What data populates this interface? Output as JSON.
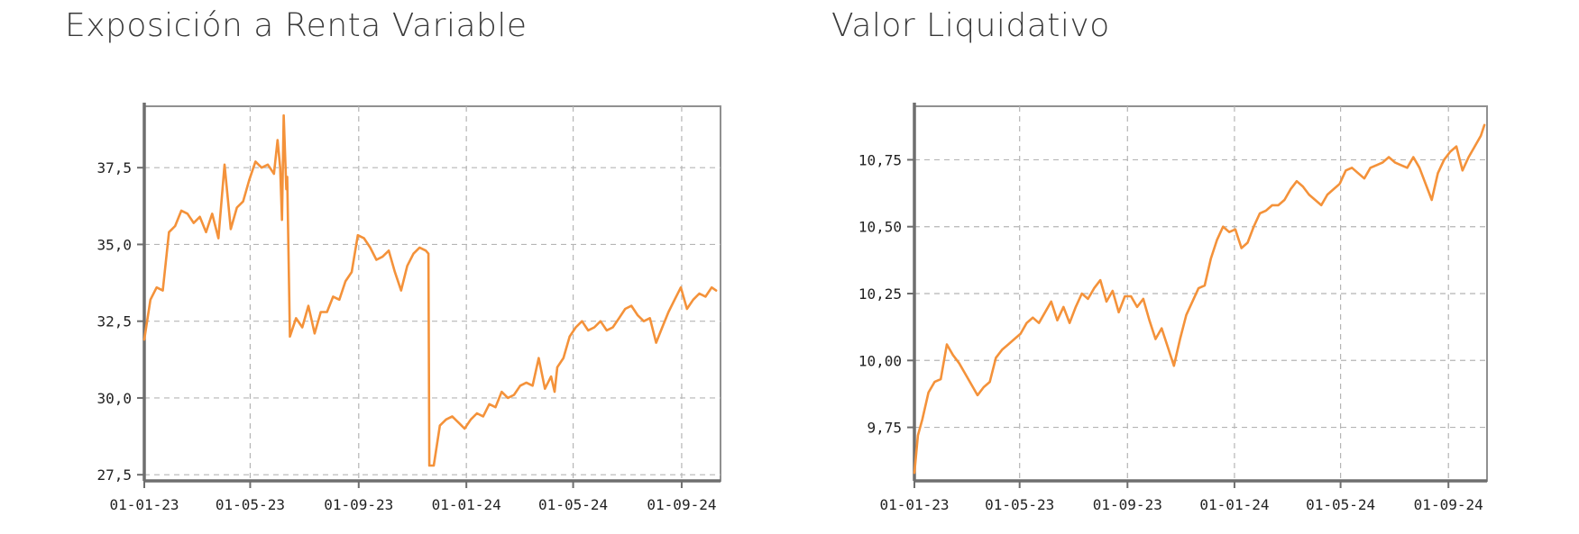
{
  "chart_data": [
    {
      "type": "line",
      "title": "Exposición a Renta Variable",
      "ylim": [
        27.3,
        39.5
      ],
      "yticks": [
        27.5,
        30.0,
        32.5,
        35.0,
        37.5
      ],
      "ytick_labels": [
        "27,5",
        "30,0",
        "32,5",
        "35,0",
        "37,5"
      ],
      "x_range": [
        "2023-01-01",
        "2024-10-15"
      ],
      "xticks": [
        "2023-01-01",
        "2023-05-01",
        "2023-09-01",
        "2024-01-01",
        "2024-05-01",
        "2024-09-01"
      ],
      "xtick_labels": [
        "01-01-23",
        "01-05-23",
        "01-09-23",
        "01-01-24",
        "01-05-24",
        "01-09-24"
      ],
      "grid": true,
      "color": "#f4923a",
      "series": [
        {
          "x": [
            "2023-01-01",
            "2023-01-08",
            "2023-01-15",
            "2023-01-22",
            "2023-01-29",
            "2023-02-05",
            "2023-02-12",
            "2023-02-19",
            "2023-02-26",
            "2023-03-05",
            "2023-03-12",
            "2023-03-19",
            "2023-03-26",
            "2023-04-02",
            "2023-04-09",
            "2023-04-16",
            "2023-04-23",
            "2023-04-30",
            "2023-05-07",
            "2023-05-14",
            "2023-05-21",
            "2023-05-28",
            "2023-06-01",
            "2023-06-04",
            "2023-06-06",
            "2023-06-08",
            "2023-06-11",
            "2023-06-12",
            "2023-06-15",
            "2023-06-22",
            "2023-06-29",
            "2023-07-06",
            "2023-07-13",
            "2023-07-20",
            "2023-07-27",
            "2023-08-03",
            "2023-08-10",
            "2023-08-17",
            "2023-08-24",
            "2023-08-31",
            "2023-09-07",
            "2023-09-14",
            "2023-09-21",
            "2023-09-28",
            "2023-10-05",
            "2023-10-12",
            "2023-10-19",
            "2023-10-26",
            "2023-11-02",
            "2023-11-09",
            "2023-11-16",
            "2023-11-19",
            "2023-11-20",
            "2023-11-25",
            "2023-12-02",
            "2023-12-09",
            "2023-12-16",
            "2023-12-23",
            "2023-12-30",
            "2024-01-06",
            "2024-01-13",
            "2024-01-20",
            "2024-01-27",
            "2024-02-03",
            "2024-02-10",
            "2024-02-17",
            "2024-02-24",
            "2024-03-02",
            "2024-03-09",
            "2024-03-16",
            "2024-03-23",
            "2024-03-30",
            "2024-04-06",
            "2024-04-10",
            "2024-04-13",
            "2024-04-20",
            "2024-04-27",
            "2024-05-04",
            "2024-05-11",
            "2024-05-18",
            "2024-05-25",
            "2024-06-01",
            "2024-06-08",
            "2024-06-15",
            "2024-06-22",
            "2024-06-29",
            "2024-07-06",
            "2024-07-13",
            "2024-07-20",
            "2024-07-27",
            "2024-08-03",
            "2024-08-10",
            "2024-08-17",
            "2024-08-24",
            "2024-08-31",
            "2024-09-07",
            "2024-09-14",
            "2024-09-21",
            "2024-09-28",
            "2024-10-05",
            "2024-10-10"
          ],
          "y": [
            31.9,
            33.2,
            33.6,
            33.5,
            35.4,
            35.6,
            36.1,
            36.0,
            35.7,
            35.9,
            35.4,
            36.0,
            35.2,
            37.6,
            35.5,
            36.2,
            36.4,
            37.1,
            37.7,
            37.5,
            37.6,
            37.3,
            38.4,
            37.5,
            35.8,
            39.2,
            36.8,
            37.2,
            32.0,
            32.6,
            32.3,
            33.0,
            32.1,
            32.8,
            32.8,
            33.3,
            33.2,
            33.8,
            34.1,
            35.3,
            35.2,
            34.9,
            34.5,
            34.6,
            34.8,
            34.1,
            33.5,
            34.3,
            34.7,
            34.9,
            34.8,
            34.7,
            27.8,
            27.8,
            29.1,
            29.3,
            29.4,
            29.2,
            29.0,
            29.3,
            29.5,
            29.4,
            29.8,
            29.7,
            30.2,
            30.0,
            30.1,
            30.4,
            30.5,
            30.4,
            31.3,
            30.3,
            30.7,
            30.2,
            31.0,
            31.3,
            32.0,
            32.3,
            32.5,
            32.2,
            32.3,
            32.5,
            32.2,
            32.3,
            32.6,
            32.9,
            33.0,
            32.7,
            32.5,
            32.6,
            31.8,
            32.3,
            32.8,
            33.2,
            33.6,
            32.9,
            33.2,
            33.4,
            33.3,
            33.6,
            33.5
          ]
        }
      ]
    },
    {
      "type": "line",
      "title": "Valor Liquidativo",
      "ylim": [
        9.55,
        10.95
      ],
      "yticks": [
        9.75,
        10.0,
        10.25,
        10.5,
        10.75
      ],
      "ytick_labels": [
        "9,75",
        "10,00",
        "10,25",
        "10,50",
        "10,75"
      ],
      "x_range": [
        "2023-01-01",
        "2024-10-15"
      ],
      "xticks": [
        "2023-01-01",
        "2023-05-01",
        "2023-09-01",
        "2024-01-01",
        "2024-05-01",
        "2024-09-01"
      ],
      "xtick_labels": [
        "01-01-23",
        "01-05-23",
        "01-09-23",
        "01-01-24",
        "01-05-24",
        "01-09-24"
      ],
      "grid": true,
      "color": "#f4923a",
      "series": [
        {
          "x": [
            "2023-01-01",
            "2023-01-05",
            "2023-01-10",
            "2023-01-17",
            "2023-01-24",
            "2023-01-31",
            "2023-02-07",
            "2023-02-14",
            "2023-02-21",
            "2023-02-28",
            "2023-03-07",
            "2023-03-14",
            "2023-03-21",
            "2023-03-28",
            "2023-04-04",
            "2023-04-11",
            "2023-04-18",
            "2023-04-25",
            "2023-05-02",
            "2023-05-09",
            "2023-05-16",
            "2023-05-23",
            "2023-05-30",
            "2023-06-06",
            "2023-06-13",
            "2023-06-20",
            "2023-06-27",
            "2023-07-04",
            "2023-07-11",
            "2023-07-18",
            "2023-07-25",
            "2023-08-01",
            "2023-08-08",
            "2023-08-15",
            "2023-08-22",
            "2023-08-29",
            "2023-09-05",
            "2023-09-12",
            "2023-09-19",
            "2023-09-26",
            "2023-10-03",
            "2023-10-10",
            "2023-10-17",
            "2023-10-24",
            "2023-10-31",
            "2023-11-07",
            "2023-11-14",
            "2023-11-21",
            "2023-11-28",
            "2023-12-05",
            "2023-12-12",
            "2023-12-19",
            "2023-12-26",
            "2024-01-02",
            "2024-01-09",
            "2024-01-16",
            "2024-01-23",
            "2024-01-30",
            "2024-02-06",
            "2024-02-13",
            "2024-02-20",
            "2024-02-27",
            "2024-03-05",
            "2024-03-12",
            "2024-03-19",
            "2024-03-26",
            "2024-04-02",
            "2024-04-09",
            "2024-04-16",
            "2024-04-23",
            "2024-04-30",
            "2024-05-07",
            "2024-05-14",
            "2024-05-21",
            "2024-05-28",
            "2024-06-04",
            "2024-06-11",
            "2024-06-18",
            "2024-06-25",
            "2024-07-02",
            "2024-07-09",
            "2024-07-16",
            "2024-07-23",
            "2024-07-30",
            "2024-08-06",
            "2024-08-13",
            "2024-08-20",
            "2024-08-27",
            "2024-09-03",
            "2024-09-10",
            "2024-09-17",
            "2024-09-24",
            "2024-10-01",
            "2024-10-08",
            "2024-10-12"
          ],
          "y": [
            9.58,
            9.72,
            9.78,
            9.88,
            9.92,
            9.93,
            10.06,
            10.02,
            9.99,
            9.95,
            9.91,
            9.87,
            9.9,
            9.92,
            10.01,
            10.04,
            10.06,
            10.08,
            10.1,
            10.14,
            10.16,
            10.14,
            10.18,
            10.22,
            10.15,
            10.2,
            10.14,
            10.2,
            10.25,
            10.23,
            10.27,
            10.3,
            10.22,
            10.26,
            10.18,
            10.24,
            10.24,
            10.2,
            10.23,
            10.15,
            10.08,
            10.12,
            10.05,
            9.98,
            10.08,
            10.17,
            10.22,
            10.27,
            10.28,
            10.38,
            10.45,
            10.5,
            10.48,
            10.49,
            10.42,
            10.44,
            10.5,
            10.55,
            10.56,
            10.58,
            10.58,
            10.6,
            10.64,
            10.67,
            10.65,
            10.62,
            10.6,
            10.58,
            10.62,
            10.64,
            10.66,
            10.71,
            10.72,
            10.7,
            10.68,
            10.72,
            10.73,
            10.74,
            10.76,
            10.74,
            10.73,
            10.72,
            10.76,
            10.72,
            10.66,
            10.6,
            10.7,
            10.75,
            10.78,
            10.8,
            10.71,
            10.76,
            10.8,
            10.84,
            10.88
          ]
        }
      ]
    }
  ]
}
